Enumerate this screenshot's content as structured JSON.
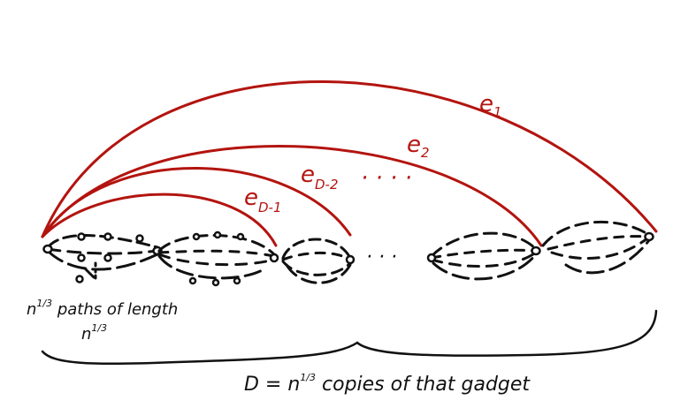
{
  "colors": {
    "edge": "#b3140f",
    "ink": "#111111",
    "background": "#ffffff"
  },
  "edges": [
    {
      "main": "e",
      "sub": "1"
    },
    {
      "main": "e",
      "sub": "2"
    },
    {
      "main": "e",
      "sub": "D-2"
    },
    {
      "main": "e",
      "sub": "D-1"
    }
  ],
  "edge_ellipsis": "· · · ·",
  "gadget_ellipsis": "· · ·",
  "annotation": {
    "line1_base": "n",
    "line1_exp": "1/3",
    "line1_rest": " paths of length",
    "line2_base": "n",
    "line2_exp": "1/3"
  },
  "caption": {
    "prefix": "D = n",
    "exp": "1/3",
    "rest": " copies of that gadget"
  }
}
